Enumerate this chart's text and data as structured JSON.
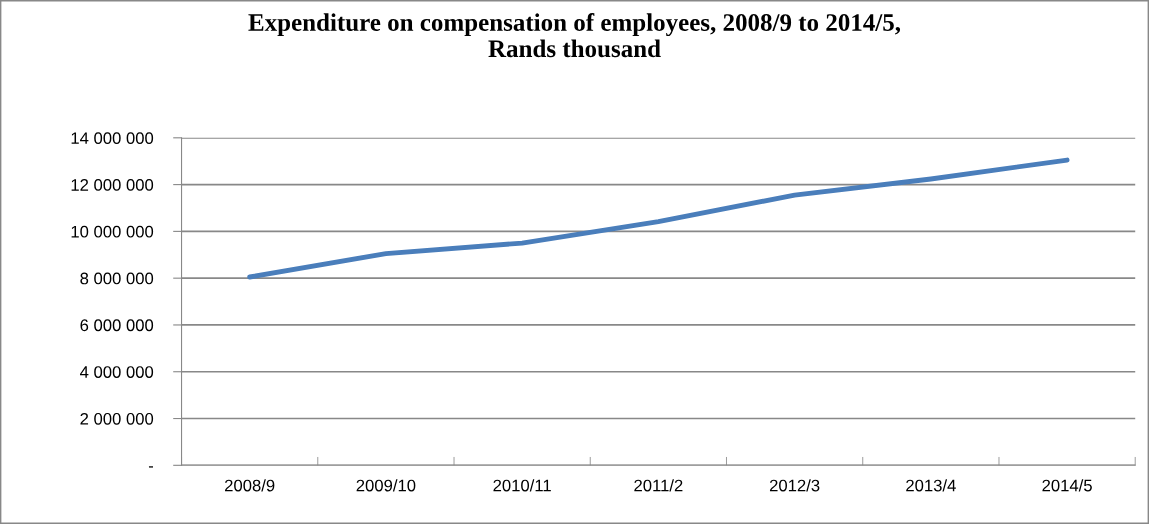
{
  "chart_data": {
    "type": "line",
    "title": "Expenditure on compensation of employees, 2008/9 to 2014/5,\nRands thousand",
    "categories": [
      "2008/9",
      "2009/10",
      "2010/11",
      "2011/2",
      "2012/3",
      "2013/4",
      "2014/5"
    ],
    "series": [
      {
        "color": "#4a7ebb",
        "values": [
          8050000,
          9050000,
          9500000,
          10420000,
          11550000,
          12240000,
          13050000
        ]
      }
    ],
    "ylim": [
      0,
      14000000
    ],
    "yticks": [
      {
        "value": 0,
        "label": "-"
      },
      {
        "value": 2000000,
        "label": "2 000 000"
      },
      {
        "value": 4000000,
        "label": "4 000 000"
      },
      {
        "value": 6000000,
        "label": "6 000 000"
      },
      {
        "value": 8000000,
        "label": "8 000 000"
      },
      {
        "value": 10000000,
        "label": "10 000 000"
      },
      {
        "value": 12000000,
        "label": "12 000 000"
      },
      {
        "value": 14000000,
        "label": "14 000 000"
      }
    ],
    "grid": "y",
    "marker": "none",
    "line_style": "solid"
  }
}
